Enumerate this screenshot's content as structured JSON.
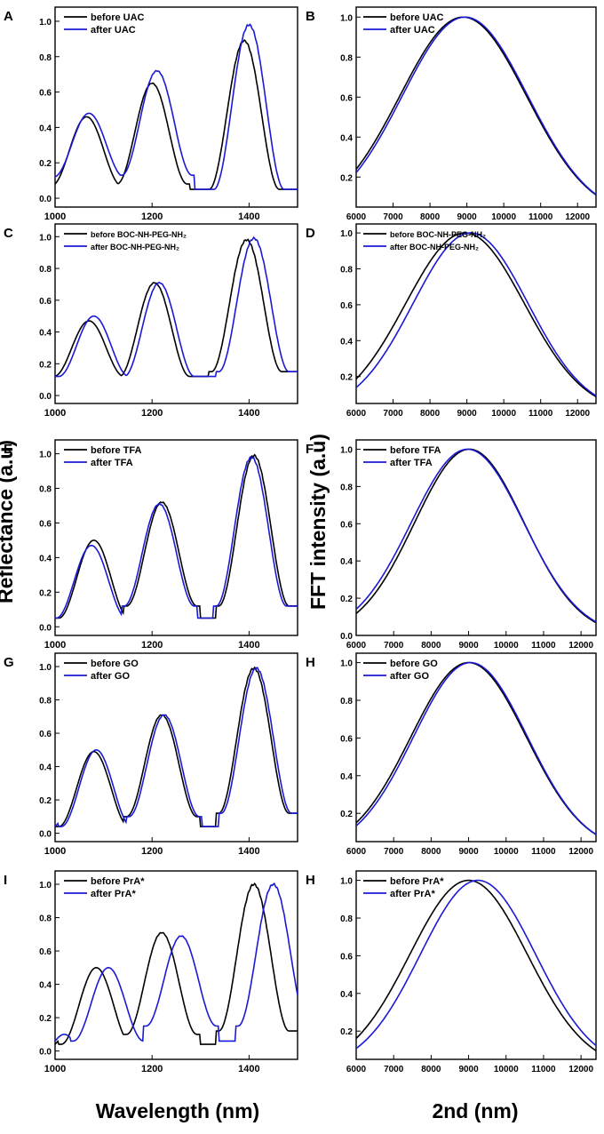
{
  "figure": {
    "ylabel_left": "Reflectance (a.u)",
    "ylabel_right": "FFT intensity (a.u)",
    "xlabel_left": "Wavelength (nm)",
    "xlabel_right": "2nd (nm)"
  },
  "colors": {
    "before": "#000000",
    "after": "#1a1ad6"
  },
  "chart_data": [
    {
      "panel": "A",
      "type": "line",
      "kind": "reflectance",
      "xlim": [
        1000,
        1500
      ],
      "ylim": [
        -0.05,
        1.08
      ],
      "xticks": [
        1000,
        1200,
        1400
      ],
      "yticks": [
        0.0,
        0.2,
        0.4,
        0.6,
        0.8,
        1.0
      ],
      "legend": [
        "before UAC",
        "after UAC"
      ],
      "series": [
        {
          "name": "before UAC",
          "peaks": [
            1065,
            1200,
            1390
          ],
          "amps": [
            0.46,
            0.65,
            0.89
          ],
          "troughs": [
            0.07,
            0.08,
            0.05
          ]
        },
        {
          "name": "after UAC",
          "peaks": [
            1070,
            1210,
            1400
          ],
          "amps": [
            0.48,
            0.72,
            0.98
          ],
          "troughs": [
            0.12,
            0.13,
            0.05
          ]
        }
      ]
    },
    {
      "panel": "B",
      "type": "line",
      "kind": "fft",
      "xlim": [
        6000,
        12500
      ],
      "ylim": [
        0.05,
        1.05
      ],
      "xticks": [
        6000,
        7000,
        8000,
        9000,
        10000,
        11000,
        12000
      ],
      "yticks": [
        0.2,
        0.4,
        0.6,
        0.8,
        1.0
      ],
      "legend": [
        "before UAC",
        "after UAC"
      ],
      "series": [
        {
          "name": "before UAC",
          "center": 8900,
          "sigma": 1715,
          "peak": 1.0
        },
        {
          "name": "after UAC",
          "center": 8950,
          "sigma": 1700,
          "peak": 1.0
        }
      ]
    },
    {
      "panel": "C",
      "type": "line",
      "kind": "reflectance",
      "xlim": [
        1000,
        1500
      ],
      "ylim": [
        -0.05,
        1.08
      ],
      "xticks": [
        1000,
        1200,
        1400
      ],
      "yticks": [
        0.0,
        0.2,
        0.4,
        0.6,
        0.8,
        1.0
      ],
      "legend": [
        "before BOC-NH-PEG-NH₂",
        "after  BOC-NH-PEG-NH₂"
      ],
      "series": [
        {
          "name": "before BOC-NH-PEG-NH₂",
          "peaks": [
            1070,
            1205,
            1395
          ],
          "amps": [
            0.47,
            0.71,
            0.98
          ],
          "troughs": [
            0.12,
            0.12,
            0.15
          ]
        },
        {
          "name": "after  BOC-NH-PEG-NH₂",
          "peaks": [
            1080,
            1215,
            1410
          ],
          "amps": [
            0.5,
            0.71,
            0.99
          ],
          "troughs": [
            0.12,
            0.12,
            0.15
          ]
        }
      ]
    },
    {
      "panel": "D",
      "type": "line",
      "kind": "fft",
      "xlim": [
        6000,
        12500
      ],
      "ylim": [
        0.05,
        1.05
      ],
      "xticks": [
        6000,
        7000,
        8000,
        9000,
        10000,
        11000,
        12000
      ],
      "yticks": [
        0.2,
        0.4,
        0.6,
        0.8,
        1.0
      ],
      "legend": [
        "before BOC-NH-PEG-NH₂",
        "after BOC-NH-PEG-NH₂"
      ],
      "series": [
        {
          "name": "before BOC-NH-PEG-NH₂",
          "center": 8950,
          "sigma": 1610,
          "peak": 1.0
        },
        {
          "name": "after BOC-NH-PEG-NH₂",
          "center": 9100,
          "sigma": 1560,
          "peak": 1.0
        }
      ]
    },
    {
      "panel": "E",
      "type": "line",
      "kind": "reflectance",
      "xlim": [
        1000,
        1500
      ],
      "ylim": [
        -0.05,
        1.08
      ],
      "xticks": [
        1000,
        1200,
        1400
      ],
      "yticks": [
        0.0,
        0.2,
        0.4,
        0.6,
        0.8,
        1.0
      ],
      "legend": [
        "before TFA",
        "after TFA"
      ],
      "series": [
        {
          "name": "before TFA",
          "peaks": [
            1080,
            1220,
            1410
          ],
          "amps": [
            0.5,
            0.72,
            0.99
          ],
          "troughs": [
            0.05,
            0.12,
            0.12
          ]
        },
        {
          "name": "after TFA",
          "peaks": [
            1075,
            1215,
            1405
          ],
          "amps": [
            0.47,
            0.71,
            0.98
          ],
          "troughs": [
            0.05,
            0.12,
            0.12
          ]
        }
      ]
    },
    {
      "panel": "F",
      "type": "line",
      "kind": "fft",
      "xlim": [
        6000,
        12400
      ],
      "ylim": [
        0.0,
        1.05
      ],
      "xticks": [
        6000,
        7000,
        8000,
        9000,
        10000,
        11000,
        12000
      ],
      "yticks": [
        0.0,
        0.2,
        0.4,
        0.6,
        0.8,
        1.0
      ],
      "legend": [
        "before TFA",
        "after TFA"
      ],
      "series": [
        {
          "name": "before TFA",
          "center": 9020,
          "sigma": 1460,
          "peak": 1.0
        },
        {
          "name": "after TFA",
          "center": 8970,
          "sigma": 1500,
          "peak": 1.0
        }
      ]
    },
    {
      "panel": "G",
      "type": "line",
      "kind": "reflectance",
      "xlim": [
        1000,
        1500
      ],
      "ylim": [
        -0.05,
        1.08
      ],
      "xticks": [
        1000,
        1200,
        1400
      ],
      "yticks": [
        0.0,
        0.2,
        0.4,
        0.6,
        0.8,
        1.0
      ],
      "legend": [
        "before GO",
        "after GO"
      ],
      "series": [
        {
          "name": "before GO",
          "peaks": [
            1080,
            1220,
            1410
          ],
          "amps": [
            0.49,
            0.71,
            0.99
          ],
          "troughs": [
            0.04,
            0.1,
            0.12
          ]
        },
        {
          "name": "after GO",
          "peaks": [
            1085,
            1225,
            1415
          ],
          "amps": [
            0.5,
            0.71,
            0.99
          ],
          "troughs": [
            0.04,
            0.1,
            0.12
          ]
        }
      ]
    },
    {
      "panel": "H",
      "type": "line",
      "kind": "fft",
      "xlim": [
        6000,
        12400
      ],
      "ylim": [
        0.05,
        1.05
      ],
      "xticks": [
        6000,
        7000,
        8000,
        9000,
        10000,
        11000,
        12000
      ],
      "yticks": [
        0.2,
        0.4,
        0.6,
        0.8,
        1.0
      ],
      "legend": [
        "before GO",
        "after GO"
      ],
      "series": [
        {
          "name": "before GO",
          "center": 9000,
          "sigma": 1540,
          "peak": 1.0
        },
        {
          "name": "after GO",
          "center": 9050,
          "sigma": 1520,
          "peak": 1.0
        }
      ]
    },
    {
      "panel": "I",
      "type": "line",
      "kind": "reflectance",
      "xlim": [
        1000,
        1500
      ],
      "ylim": [
        -0.05,
        1.08
      ],
      "xticks": [
        1000,
        1200,
        1400
      ],
      "yticks": [
        0.0,
        0.2,
        0.4,
        0.6,
        0.8,
        1.0
      ],
      "legend": [
        "before PrA*",
        "after PrA*"
      ],
      "series": [
        {
          "name": "before PrA*",
          "peaks": [
            1085,
            1220,
            1410
          ],
          "amps": [
            0.5,
            0.71,
            1.0
          ],
          "troughs": [
            0.04,
            0.1,
            0.12
          ]
        },
        {
          "name": "after PrA*",
          "peaks": [
            1110,
            1260,
            1450
          ],
          "amps": [
            0.5,
            0.69,
            1.0
          ],
          "troughs": [
            0.06,
            0.15,
            0.15
          ]
        }
      ]
    },
    {
      "panel": "H",
      "type": "line",
      "kind": "fft",
      "xlim": [
        6000,
        12400
      ],
      "ylim": [
        0.05,
        1.05
      ],
      "xticks": [
        6000,
        7000,
        8000,
        9000,
        10000,
        11000,
        12000
      ],
      "yticks": [
        0.2,
        0.4,
        0.6,
        0.8,
        1.0
      ],
      "legend": [
        "before PrA*",
        "after PrA*"
      ],
      "series": [
        {
          "name": "before PrA*",
          "center": 9000,
          "sigma": 1570,
          "peak": 1.0
        },
        {
          "name": "after PrA*",
          "center": 9250,
          "sigma": 1540,
          "peak": 1.0
        }
      ]
    }
  ]
}
